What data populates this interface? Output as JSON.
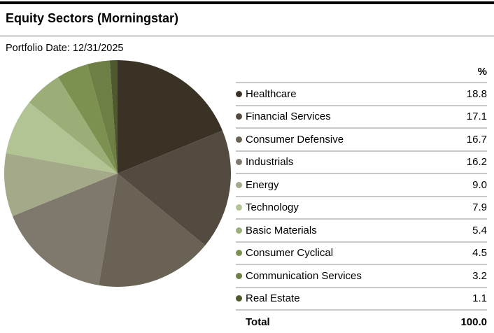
{
  "header": {
    "title": "Equity Sectors (Morningstar)",
    "portfolio_date": "Portfolio Date: 12/31/2025"
  },
  "legend": {
    "value_column_header": "%",
    "total_label": "Total",
    "total_value": "100.0"
  },
  "chart_data": {
    "type": "pie",
    "title": "Equity Sectors (Morningstar)",
    "start_angle_deg": 0,
    "direction": "clockwise",
    "legend_position": "right",
    "series": [
      {
        "name": "Healthcare",
        "value": 18.8,
        "color": "#3b3226"
      },
      {
        "name": "Financial Services",
        "value": 17.1,
        "color": "#544b40"
      },
      {
        "name": "Consumer Defensive",
        "value": 16.7,
        "color": "#696255"
      },
      {
        "name": "Industrials",
        "value": 16.2,
        "color": "#7f786d"
      },
      {
        "name": "Energy",
        "value": 9.0,
        "color": "#a4aa89"
      },
      {
        "name": "Technology",
        "value": 7.9,
        "color": "#b2c493"
      },
      {
        "name": "Basic Materials",
        "value": 5.4,
        "color": "#9cae78"
      },
      {
        "name": "Consumer Cyclical",
        "value": 4.5,
        "color": "#7c9150"
      },
      {
        "name": "Communication Services",
        "value": 3.2,
        "color": "#6d7f45"
      },
      {
        "name": "Real Estate",
        "value": 1.1,
        "color": "#4e5a2e"
      }
    ],
    "total": 100.0
  }
}
